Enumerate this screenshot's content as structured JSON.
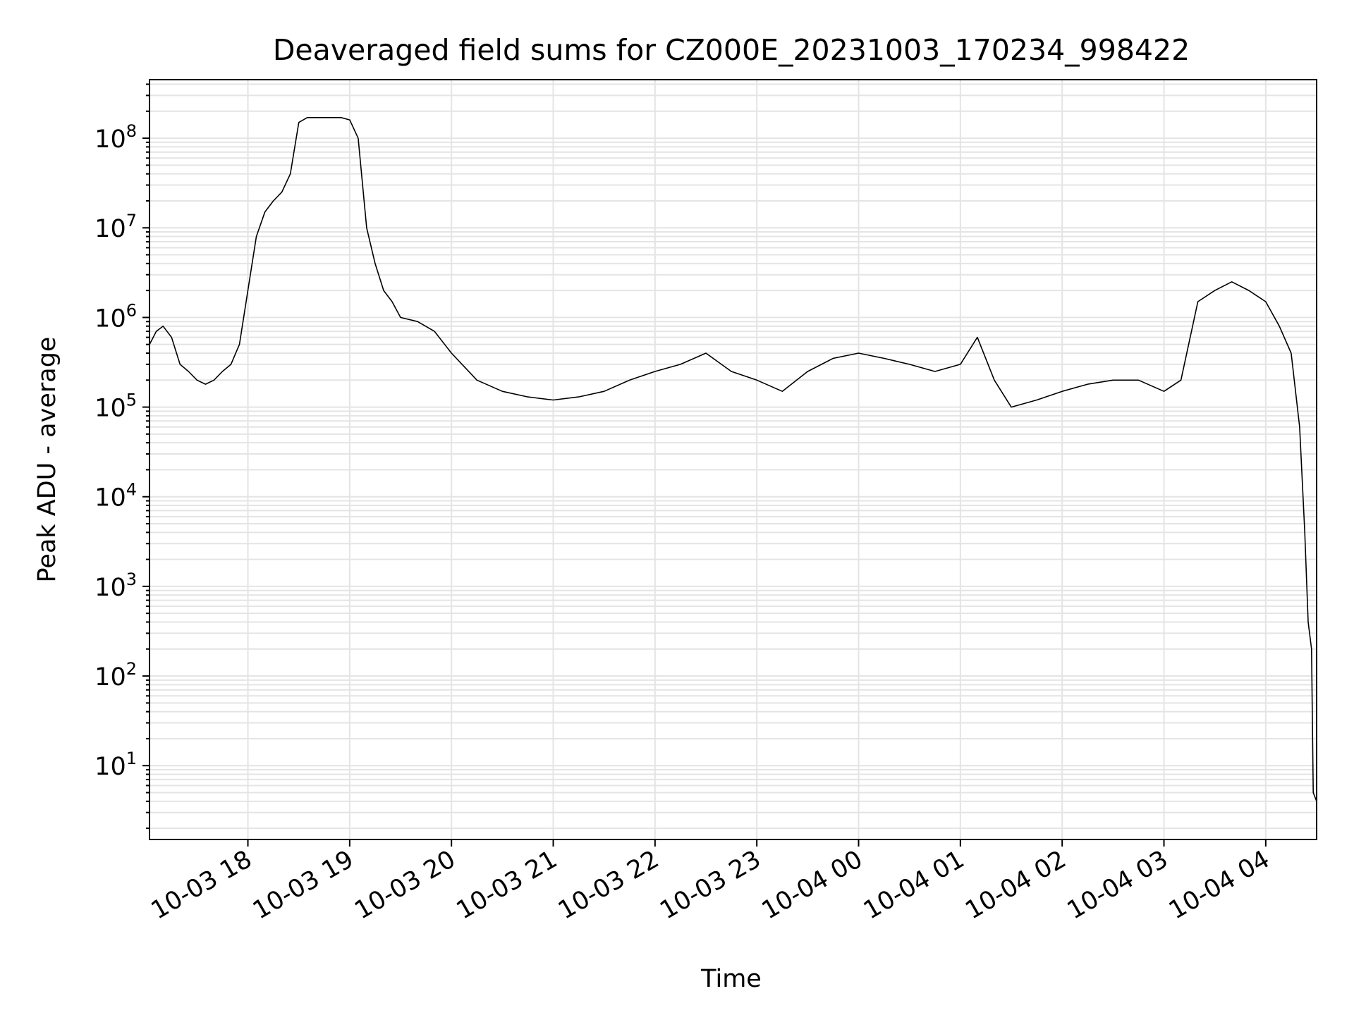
{
  "chart_data": {
    "type": "line",
    "title": "Deaveraged field sums for CZ000E_20231003_170234_998422",
    "xlabel": "Time",
    "ylabel": "Peak ADU - average",
    "yscale": "log",
    "ylim": [
      1.5,
      450000000
    ],
    "xlim": [
      "2023-10-03 17:02",
      "2023-10-04 04:30"
    ],
    "grid": true,
    "x_ticks": [
      "10-03 18",
      "10-03 19",
      "10-03 20",
      "10-03 21",
      "10-03 22",
      "10-03 23",
      "10-04 00",
      "10-04 01",
      "10-04 02",
      "10-04 03",
      "10-04 04"
    ],
    "y_ticks": [
      10,
      100,
      1000,
      10000,
      100000,
      1000000,
      10000000,
      100000000
    ],
    "y_tick_labels": [
      {
        "base": "10",
        "exp": "1"
      },
      {
        "base": "10",
        "exp": "2"
      },
      {
        "base": "10",
        "exp": "3"
      },
      {
        "base": "10",
        "exp": "4"
      },
      {
        "base": "10",
        "exp": "5"
      },
      {
        "base": "10",
        "exp": "6"
      },
      {
        "base": "10",
        "exp": "7"
      },
      {
        "base": "10",
        "exp": "8"
      }
    ],
    "series": [
      {
        "color": "#000000",
        "x": [
          "2023-10-03 17:02",
          "2023-10-03 17:06",
          "2023-10-03 17:10",
          "2023-10-03 17:15",
          "2023-10-03 17:20",
          "2023-10-03 17:25",
          "2023-10-03 17:30",
          "2023-10-03 17:35",
          "2023-10-03 17:40",
          "2023-10-03 17:45",
          "2023-10-03 17:50",
          "2023-10-03 17:55",
          "2023-10-03 18:00",
          "2023-10-03 18:05",
          "2023-10-03 18:10",
          "2023-10-03 18:15",
          "2023-10-03 18:20",
          "2023-10-03 18:25",
          "2023-10-03 18:30",
          "2023-10-03 18:35",
          "2023-10-03 18:40",
          "2023-10-03 18:45",
          "2023-10-03 18:50",
          "2023-10-03 18:55",
          "2023-10-03 19:00",
          "2023-10-03 19:05",
          "2023-10-03 19:10",
          "2023-10-03 19:15",
          "2023-10-03 19:20",
          "2023-10-03 19:25",
          "2023-10-03 19:30",
          "2023-10-03 19:40",
          "2023-10-03 19:50",
          "2023-10-03 20:00",
          "2023-10-03 20:15",
          "2023-10-03 20:30",
          "2023-10-03 20:45",
          "2023-10-03 21:00",
          "2023-10-03 21:15",
          "2023-10-03 21:30",
          "2023-10-03 21:45",
          "2023-10-03 22:00",
          "2023-10-03 22:15",
          "2023-10-03 22:30",
          "2023-10-03 22:45",
          "2023-10-03 23:00",
          "2023-10-03 23:15",
          "2023-10-03 23:30",
          "2023-10-03 23:45",
          "2023-10-04 00:00",
          "2023-10-04 00:15",
          "2023-10-04 00:30",
          "2023-10-04 00:45",
          "2023-10-04 01:00",
          "2023-10-04 01:10",
          "2023-10-04 01:20",
          "2023-10-04 01:30",
          "2023-10-04 01:45",
          "2023-10-04 02:00",
          "2023-10-04 02:15",
          "2023-10-04 02:30",
          "2023-10-04 02:45",
          "2023-10-04 03:00",
          "2023-10-04 03:10",
          "2023-10-04 03:20",
          "2023-10-04 03:30",
          "2023-10-04 03:40",
          "2023-10-04 03:50",
          "2023-10-04 04:00",
          "2023-10-04 04:08",
          "2023-10-04 04:15",
          "2023-10-04 04:20",
          "2023-10-04 04:23",
          "2023-10-04 04:25",
          "2023-10-04 04:27",
          "2023-10-04 04:28",
          "2023-10-04 04:30"
        ],
        "y": [
          500000,
          700000,
          800000,
          600000,
          300000,
          250000,
          200000,
          180000,
          200000,
          250000,
          300000,
          500000,
          2000000,
          8000000,
          15000000,
          20000000,
          25000000,
          40000000,
          150000000,
          170000000,
          170000000,
          170000000,
          170000000,
          170000000,
          160000000,
          100000000,
          10000000,
          4000000,
          2000000,
          1500000,
          1000000,
          900000,
          700000,
          400000,
          200000,
          150000,
          130000,
          120000,
          130000,
          150000,
          200000,
          250000,
          300000,
          400000,
          250000,
          200000,
          150000,
          250000,
          350000,
          400000,
          350000,
          300000,
          250000,
          300000,
          600000,
          200000,
          100000,
          120000,
          150000,
          180000,
          200000,
          200000,
          150000,
          200000,
          1500000,
          2000000,
          2500000,
          2000000,
          1500000,
          800000,
          400000,
          60000,
          4000,
          400,
          200,
          5,
          4
        ]
      }
    ]
  }
}
